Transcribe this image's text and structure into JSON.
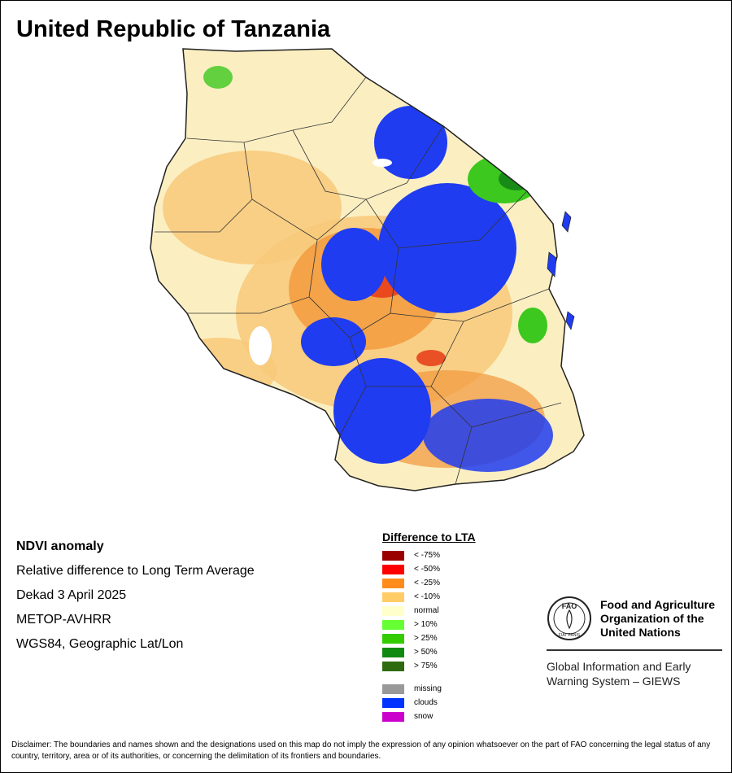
{
  "title": "United Republic of Tanzania",
  "info": {
    "heading": "NDVI anomaly",
    "lines": [
      "Relative difference to Long Term Average",
      "Dekad 3 April 2025",
      "METOP-AVHRR",
      "WGS84, Geographic Lat/Lon"
    ]
  },
  "legend": {
    "title": "Difference to LTA",
    "items": [
      {
        "label": "< -75%",
        "color": "#9b0000"
      },
      {
        "label": "< -50%",
        "color": "#ff0000"
      },
      {
        "label": "< -25%",
        "color": "#ff8c1a"
      },
      {
        "label": "< -10%",
        "color": "#ffcc66"
      },
      {
        "label": "normal",
        "color": "#ffffcc"
      },
      {
        "label": "> 10%",
        "color": "#66ff33"
      },
      {
        "label": "> 25%",
        "color": "#33cc00"
      },
      {
        "label": "> 50%",
        "color": "#118a11"
      },
      {
        "label": "> 75%",
        "color": "#2e6b0e"
      }
    ],
    "extra": [
      {
        "label": "missing",
        "color": "#999999"
      },
      {
        "label": "clouds",
        "color": "#0033ff"
      },
      {
        "label": "snow",
        "color": "#cc00cc"
      }
    ]
  },
  "fao": {
    "logo_text": "FAO",
    "logo_motto": "FIAT PANIS",
    "name_lines": [
      "Food and Agriculture",
      "Organization of the",
      "United Nations"
    ],
    "giews_lines": [
      "Global Information and Early",
      "Warning System – GIEWS"
    ]
  },
  "disclaimer": "Disclaimer: The boundaries and names shown and the designations used on this map do not imply the expression of any opinion whatsoever on the part of FAO concerning the legal status of any country, territory, area or of its authorities, or concerning the delimitation of its frontiers and boundaries.",
  "map_colors": {
    "normal": "#fbefc2",
    "mild_negative": "#f8c97a",
    "moderate_negative": "#f2973a",
    "strong_negative": "#e63a14",
    "clouds": "#1f3cf0",
    "positive": "#3cc81e",
    "strong_positive": "#178a17",
    "water": "#ffffff",
    "border": "#222222"
  }
}
